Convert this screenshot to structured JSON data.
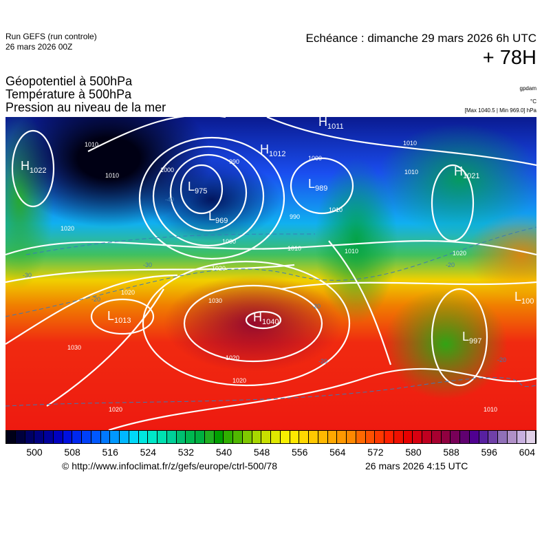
{
  "header": {
    "run": "Run GEFS (run controle)",
    "run_date": "26 mars 2026 00Z",
    "echeance": "Echéance : dimanche 29 mars 2026 6h UTC",
    "lead": "+ 78H"
  },
  "titles": [
    "Géopotentiel à 500hPa",
    "Température à 500hPa",
    "Pression au niveau de la mer"
  ],
  "units": [
    "gpdam",
    "°C",
    "[Max 1040.5 | Min 969.0] hPa"
  ],
  "map": {
    "centers": [
      {
        "type": "H",
        "value": "1022"
      },
      {
        "type": "L",
        "value": "975"
      },
      {
        "type": "L",
        "value": "969"
      },
      {
        "type": "H",
        "value": "1012"
      },
      {
        "type": "H",
        "value": "1011"
      },
      {
        "type": "L",
        "value": "989"
      },
      {
        "type": "H",
        "value": "1021"
      },
      {
        "type": "L",
        "value": "1013"
      },
      {
        "type": "H",
        "value": "1040"
      },
      {
        "type": "L",
        "value": "997"
      },
      {
        "type": "L",
        "value": "100"
      }
    ],
    "isobar_labels": [
      "1010",
      "1010",
      "1000",
      "990",
      "1000",
      "1010",
      "1020",
      "1020",
      "1000",
      "990",
      "1010",
      "1010",
      "1010",
      "1010",
      "1020",
      "1030",
      "1030",
      "1020",
      "1020",
      "1020",
      "1020",
      "1010"
    ],
    "temperature_labels": [
      "-40",
      "-30",
      "-30",
      "-20",
      "-20",
      "-20",
      "-20",
      "-20"
    ]
  },
  "colorbar": {
    "ticks": [
      "500",
      "508",
      "516",
      "524",
      "532",
      "540",
      "548",
      "556",
      "564",
      "572",
      "580",
      "588",
      "596",
      "604"
    ],
    "colors": [
      "#000018",
      "#00003c",
      "#000064",
      "#000080",
      "#00009c",
      "#0000c0",
      "#0010e0",
      "#0028f0",
      "#0040f8",
      "#0058ff",
      "#0078ff",
      "#0098ff",
      "#00b8ff",
      "#00d8f8",
      "#00e8e0",
      "#00e8c8",
      "#00e0b0",
      "#00d098",
      "#00c070",
      "#00b850",
      "#00b040",
      "#20b020",
      "#00a000",
      "#30b000",
      "#50b800",
      "#80c800",
      "#a8d800",
      "#c8e000",
      "#e0e800",
      "#f8f000",
      "#ffe800",
      "#ffd800",
      "#ffc800",
      "#ffb800",
      "#ffa800",
      "#ff9800",
      "#ff8800",
      "#ff6800",
      "#ff5000",
      "#ff3800",
      "#ff2000",
      "#f01000",
      "#e80000",
      "#d80010",
      "#c00020",
      "#a80030",
      "#900040",
      "#780058",
      "#600070",
      "#500090",
      "#5820a0",
      "#7040a8",
      "#9070b8",
      "#b090c8",
      "#c8b0e0",
      "#e0d0e8"
    ]
  },
  "footer": {
    "source": "© http://www.infoclimat.fr/z/gefs/europe/ctrl-500/78",
    "generated": "26 mars 2026  4:15 UTC"
  }
}
